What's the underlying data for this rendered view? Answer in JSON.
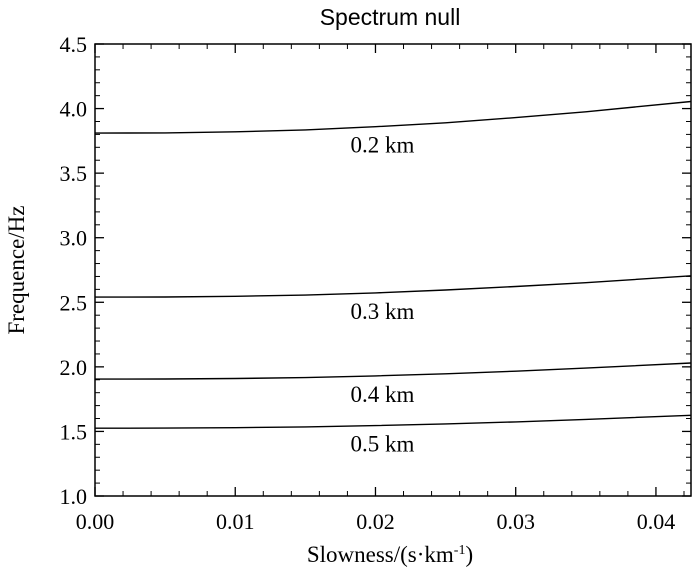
{
  "chart_data": {
    "type": "line",
    "title": "Spectrum null",
    "xlabel": "Slowness/(s·km",
    "xlabel_sup": "-1",
    "xlabel_tail": ")",
    "ylabel": "Frequence/Hz",
    "xlim": [
      0.0,
      0.0425
    ],
    "ylim": [
      1.0,
      4.5
    ],
    "x_ticks": [
      "0.00",
      "0.01",
      "0.02",
      "0.03",
      "0.04"
    ],
    "y_ticks": [
      "1.0",
      "1.5",
      "2.0",
      "2.5",
      "3.0",
      "3.5",
      "4.0",
      "4.5"
    ],
    "grid": false,
    "series": [
      {
        "label": "0.2 km",
        "x": [
          0.0,
          0.005,
          0.01,
          0.015,
          0.02,
          0.025,
          0.03,
          0.035,
          0.0425
        ],
        "y": [
          3.81,
          3.812,
          3.82,
          3.835,
          3.86,
          3.89,
          3.93,
          3.975,
          4.055
        ]
      },
      {
        "label": "0.3 km",
        "x": [
          0.0,
          0.005,
          0.01,
          0.015,
          0.02,
          0.025,
          0.03,
          0.035,
          0.0425
        ],
        "y": [
          2.54,
          2.541,
          2.546,
          2.556,
          2.573,
          2.595,
          2.622,
          2.652,
          2.705
        ]
      },
      {
        "label": "0.4 km",
        "x": [
          0.0,
          0.005,
          0.01,
          0.015,
          0.02,
          0.025,
          0.03,
          0.035,
          0.0425
        ],
        "y": [
          1.905,
          1.906,
          1.91,
          1.917,
          1.93,
          1.946,
          1.966,
          1.99,
          2.03
        ]
      },
      {
        "label": "0.5 km",
        "x": [
          0.0,
          0.005,
          0.01,
          0.015,
          0.02,
          0.025,
          0.03,
          0.035,
          0.0425
        ],
        "y": [
          1.525,
          1.526,
          1.529,
          1.535,
          1.545,
          1.558,
          1.574,
          1.593,
          1.625
        ]
      }
    ]
  }
}
